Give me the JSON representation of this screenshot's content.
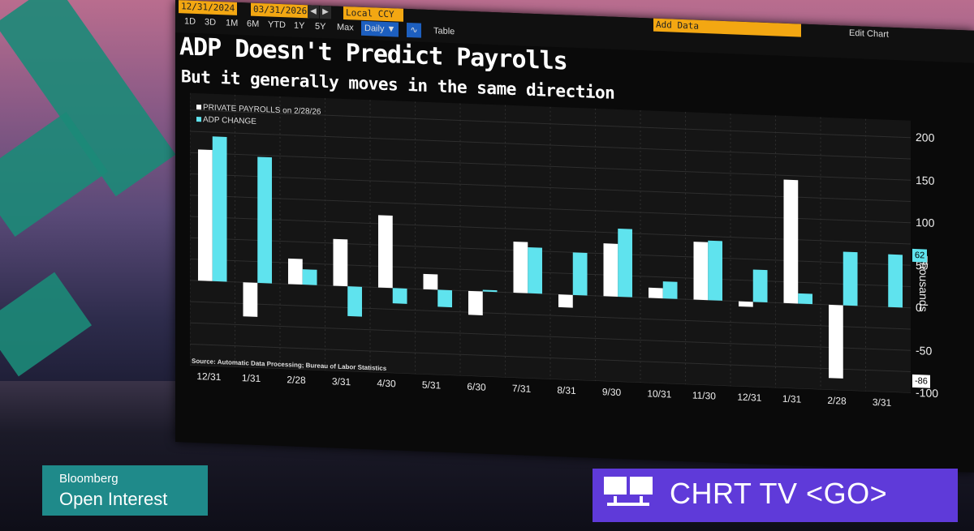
{
  "toolbar": {
    "start_date": "12/31/2024",
    "end_date": "03/31/2026",
    "currency": "Local CCY",
    "periods": [
      "1D",
      "3D",
      "1M",
      "6M",
      "YTD",
      "1Y",
      "5Y",
      "Max"
    ],
    "frequency": "Daily ▼",
    "table_label": "Table",
    "add_data": "Add Data",
    "edit_chart": "Edit Chart"
  },
  "header": {
    "title": "ADP Doesn't Predict Payrolls",
    "subtitle": "But it generally moves in the same direction"
  },
  "chart_data": {
    "type": "bar",
    "title": "ADP Doesn't Predict Payrolls",
    "subtitle": "But it generally moves in the same direction",
    "ylabel": "Thousands",
    "ylim": [
      -100,
      220
    ],
    "yticks": [
      "200",
      "150",
      "100",
      "50",
      "0",
      "-50",
      "-100"
    ],
    "categories": [
      "12/31",
      "1/31",
      "2/28",
      "3/31",
      "4/30",
      "5/31",
      "6/30",
      "7/31",
      "8/31",
      "9/30",
      "10/31",
      "11/30",
      "12/31",
      "1/31",
      "2/28",
      "3/31"
    ],
    "series": [
      {
        "name": "PRIVATE PAYROLLS on 2/28/26",
        "color": "#ffffff",
        "values": [
          154,
          -40,
          30,
          55,
          85,
          18,
          -28,
          60,
          -15,
          62,
          12,
          68,
          -6,
          145,
          -86,
          null
        ]
      },
      {
        "name": "ADP CHANGE",
        "color": "#5fe3ee",
        "values": [
          170,
          148,
          18,
          -35,
          -18,
          -20,
          2,
          54,
          50,
          80,
          20,
          70,
          38,
          12,
          63,
          62
        ]
      }
    ],
    "last_value_labels": {
      "adp": "62",
      "payrolls": "-86"
    },
    "source": "Source: Automatic Data Processing; Bureau of Labor Statistics"
  },
  "lower_third": {
    "brand_line1": "Bloomberg",
    "brand_line2": "Open Interest",
    "cta": "CHRT TV <GO>"
  },
  "colors": {
    "accent_orange": "#f3a712",
    "adp": "#5fe3ee",
    "payrolls": "#ffffff",
    "brand_teal": "#1f8a8a",
    "cta_purple": "#5f3ad9"
  }
}
